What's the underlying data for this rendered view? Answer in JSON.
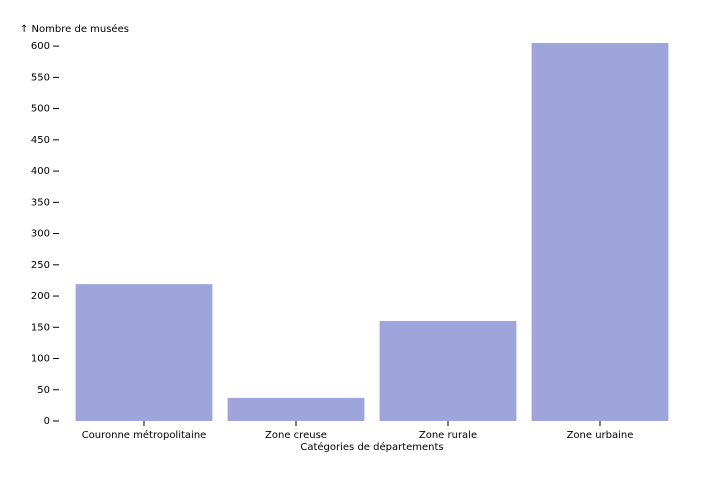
{
  "chart_data": {
    "type": "bar",
    "y_label": "↑ Nombre de musées",
    "x_label": "Catégories de départements",
    "categories": [
      "Couronne métropolitaine",
      "Zone creuse",
      "Zone rurale",
      "Zone urbaine"
    ],
    "values": [
      219,
      37,
      160,
      605
    ],
    "color": "#9ea5db",
    "ylim": [
      0,
      605
    ],
    "yticks": [
      0,
      50,
      100,
      150,
      200,
      250,
      300,
      350,
      400,
      450,
      500,
      550,
      600
    ],
    "grid": false
  }
}
